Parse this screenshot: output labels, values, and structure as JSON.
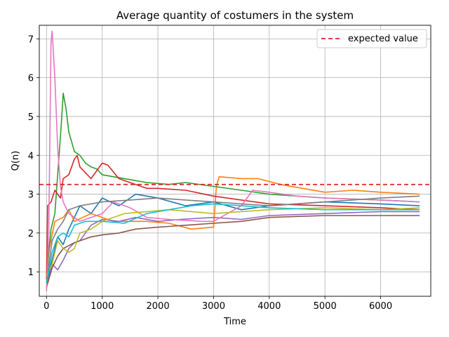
{
  "chart_data": {
    "type": "line",
    "title": "Average quantity of costumers in the system",
    "xlabel": "Time",
    "ylabel": "Q(n)",
    "xlim": [
      -130,
      6900
    ],
    "ylim": [
      0.37,
      7.35
    ],
    "xticks": [
      0,
      1000,
      2000,
      3000,
      4000,
      5000,
      6000
    ],
    "yticks": [
      1,
      2,
      3,
      4,
      5,
      6,
      7
    ],
    "grid": true,
    "legend": {
      "position": "top-right",
      "entries": [
        "expected value"
      ]
    },
    "reference_line": {
      "name": "expected value",
      "y": 3.25,
      "color": "#d62728",
      "style": "dashed"
    },
    "series": [
      {
        "color": "#1f77b4",
        "points": [
          [
            0,
            0.6
          ],
          [
            50,
            1.0
          ],
          [
            100,
            1.3
          ],
          [
            200,
            1.9
          ],
          [
            300,
            1.7
          ],
          [
            400,
            2.1
          ],
          [
            600,
            2.7
          ],
          [
            800,
            2.5
          ],
          [
            1000,
            2.9
          ],
          [
            1300,
            2.7
          ],
          [
            1600,
            3.0
          ],
          [
            2000,
            2.9
          ],
          [
            2500,
            2.7
          ],
          [
            3000,
            2.8
          ],
          [
            3500,
            2.6
          ],
          [
            4000,
            2.7
          ],
          [
            5000,
            2.8
          ],
          [
            6000,
            2.75
          ],
          [
            6700,
            2.7
          ]
        ]
      },
      {
        "color": "#ff7f0e",
        "points": [
          [
            0,
            0.9
          ],
          [
            50,
            1.6
          ],
          [
            150,
            2.3
          ],
          [
            300,
            2.4
          ],
          [
            400,
            2.6
          ],
          [
            500,
            2.3
          ],
          [
            800,
            2.5
          ],
          [
            1200,
            2.3
          ],
          [
            1800,
            2.3
          ],
          [
            2200,
            2.25
          ],
          [
            2600,
            2.1
          ],
          [
            3000,
            2.15
          ],
          [
            3050,
            3.2
          ],
          [
            3100,
            3.45
          ],
          [
            3500,
            3.4
          ],
          [
            3800,
            3.4
          ],
          [
            4200,
            3.25
          ],
          [
            4600,
            3.15
          ],
          [
            5000,
            3.05
          ],
          [
            5500,
            3.1
          ],
          [
            6000,
            3.05
          ],
          [
            6700,
            3.0
          ]
        ]
      },
      {
        "color": "#2ca02c",
        "points": [
          [
            0,
            0.7
          ],
          [
            40,
            1.5
          ],
          [
            80,
            2.1
          ],
          [
            150,
            2.5
          ],
          [
            200,
            3.5
          ],
          [
            260,
            4.7
          ],
          [
            300,
            5.6
          ],
          [
            350,
            5.2
          ],
          [
            400,
            4.6
          ],
          [
            500,
            4.1
          ],
          [
            600,
            4.0
          ],
          [
            700,
            3.8
          ],
          [
            800,
            3.7
          ],
          [
            900,
            3.65
          ],
          [
            1000,
            3.5
          ],
          [
            1200,
            3.45
          ],
          [
            1400,
            3.4
          ],
          [
            1800,
            3.3
          ],
          [
            2200,
            3.25
          ],
          [
            2500,
            3.3
          ],
          [
            3000,
            3.2
          ],
          [
            3500,
            3.1
          ],
          [
            4000,
            3.0
          ],
          [
            5000,
            2.9
          ],
          [
            6000,
            2.85
          ],
          [
            6700,
            2.8
          ]
        ]
      },
      {
        "color": "#d62728",
        "points": [
          [
            0,
            0.8
          ],
          [
            20,
            2.7
          ],
          [
            80,
            2.8
          ],
          [
            150,
            3.1
          ],
          [
            250,
            2.9
          ],
          [
            300,
            3.4
          ],
          [
            400,
            3.5
          ],
          [
            500,
            3.9
          ],
          [
            550,
            4.0
          ],
          [
            600,
            3.7
          ],
          [
            800,
            3.4
          ],
          [
            1000,
            3.8
          ],
          [
            1100,
            3.75
          ],
          [
            1300,
            3.4
          ],
          [
            1500,
            3.3
          ],
          [
            1800,
            3.15
          ],
          [
            2000,
            3.15
          ],
          [
            2500,
            3.1
          ],
          [
            3000,
            2.95
          ],
          [
            3500,
            2.85
          ],
          [
            4000,
            2.75
          ],
          [
            5000,
            2.7
          ],
          [
            6000,
            2.65
          ],
          [
            6700,
            2.6
          ]
        ]
      },
      {
        "color": "#9467bd",
        "points": [
          [
            0,
            0.6
          ],
          [
            100,
            1.2
          ],
          [
            200,
            1.05
          ],
          [
            300,
            1.3
          ],
          [
            400,
            1.6
          ],
          [
            500,
            1.75
          ],
          [
            600,
            1.8
          ],
          [
            800,
            2.2
          ],
          [
            1000,
            2.35
          ],
          [
            1300,
            2.3
          ],
          [
            1600,
            2.4
          ],
          [
            2000,
            2.3
          ],
          [
            2400,
            2.35
          ],
          [
            3000,
            2.4
          ],
          [
            3500,
            2.35
          ],
          [
            4000,
            2.45
          ],
          [
            5000,
            2.5
          ],
          [
            6000,
            2.55
          ],
          [
            6700,
            2.55
          ]
        ]
      },
      {
        "color": "#8c564b",
        "points": [
          [
            0,
            0.6
          ],
          [
            100,
            1.1
          ],
          [
            200,
            1.4
          ],
          [
            300,
            1.6
          ],
          [
            500,
            1.75
          ],
          [
            800,
            1.9
          ],
          [
            1000,
            1.95
          ],
          [
            1300,
            2.0
          ],
          [
            1600,
            2.1
          ],
          [
            2000,
            2.15
          ],
          [
            2500,
            2.2
          ],
          [
            3000,
            2.25
          ],
          [
            3500,
            2.3
          ],
          [
            4000,
            2.4
          ],
          [
            5000,
            2.45
          ],
          [
            6000,
            2.45
          ],
          [
            6700,
            2.45
          ]
        ]
      },
      {
        "color": "#e377c2",
        "points": [
          [
            0,
            0.5
          ],
          [
            40,
            2.0
          ],
          [
            80,
            6.9
          ],
          [
            100,
            7.2
          ],
          [
            150,
            6.0
          ],
          [
            200,
            4.2
          ],
          [
            250,
            3.2
          ],
          [
            300,
            2.8
          ],
          [
            400,
            2.5
          ],
          [
            600,
            2.3
          ],
          [
            800,
            2.4
          ],
          [
            1000,
            2.5
          ],
          [
            1200,
            2.8
          ],
          [
            1500,
            2.65
          ],
          [
            1800,
            2.4
          ],
          [
            2200,
            2.35
          ],
          [
            2800,
            2.3
          ],
          [
            3000,
            2.3
          ],
          [
            3500,
            2.7
          ],
          [
            3700,
            3.1
          ],
          [
            4000,
            3.05
          ],
          [
            4500,
            2.95
          ],
          [
            5000,
            2.9
          ],
          [
            6000,
            2.85
          ],
          [
            6700,
            2.8
          ]
        ]
      },
      {
        "color": "#7f7f7f",
        "points": [
          [
            0,
            0.7
          ],
          [
            100,
            1.8
          ],
          [
            200,
            2.1
          ],
          [
            300,
            2.3
          ],
          [
            400,
            2.6
          ],
          [
            600,
            2.7
          ],
          [
            800,
            2.75
          ],
          [
            1000,
            2.8
          ],
          [
            1500,
            2.85
          ],
          [
            2000,
            2.9
          ],
          [
            2500,
            2.85
          ],
          [
            3000,
            2.8
          ],
          [
            3500,
            2.75
          ],
          [
            4000,
            2.7
          ],
          [
            5000,
            2.8
          ],
          [
            6000,
            2.9
          ],
          [
            6700,
            2.95
          ]
        ]
      },
      {
        "color": "#bcbd22",
        "points": [
          [
            0,
            0.9
          ],
          [
            100,
            1.2
          ],
          [
            200,
            1.8
          ],
          [
            300,
            1.6
          ],
          [
            400,
            1.5
          ],
          [
            500,
            1.6
          ],
          [
            600,
            2.0
          ],
          [
            800,
            2.1
          ],
          [
            1000,
            2.3
          ],
          [
            1400,
            2.5
          ],
          [
            1800,
            2.55
          ],
          [
            2200,
            2.6
          ],
          [
            2600,
            2.55
          ],
          [
            3000,
            2.5
          ],
          [
            3500,
            2.55
          ],
          [
            4000,
            2.6
          ],
          [
            5000,
            2.65
          ],
          [
            6000,
            2.6
          ],
          [
            6700,
            2.65
          ]
        ]
      },
      {
        "color": "#17becf",
        "points": [
          [
            0,
            0.7
          ],
          [
            100,
            1.5
          ],
          [
            200,
            1.9
          ],
          [
            300,
            2.0
          ],
          [
            400,
            1.9
          ],
          [
            500,
            2.2
          ],
          [
            700,
            2.3
          ],
          [
            1000,
            2.3
          ],
          [
            1400,
            2.25
          ],
          [
            1800,
            2.5
          ],
          [
            2200,
            2.6
          ],
          [
            2600,
            2.7
          ],
          [
            3000,
            2.75
          ],
          [
            3500,
            2.7
          ],
          [
            4000,
            2.65
          ],
          [
            5000,
            2.6
          ],
          [
            6000,
            2.6
          ],
          [
            6700,
            2.6
          ]
        ]
      }
    ]
  }
}
